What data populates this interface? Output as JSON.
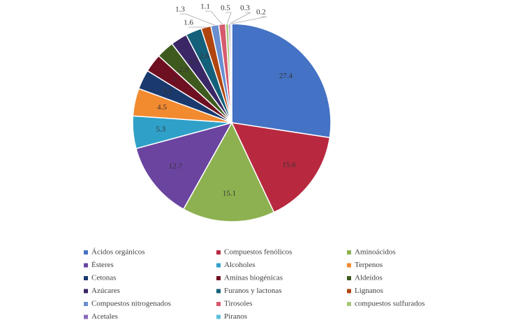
{
  "chart_data": {
    "type": "pie",
    "categories": [
      "Ácidos orgánicos",
      "Compuestos fenólicos",
      "Aminoácidos",
      "Ésteres",
      "Alcoholes",
      "Terpenos",
      "Cetonas",
      "Aminas biogénicas",
      "Aldeídos",
      "Azúcares",
      "Furanos y lactonas",
      "Lignanos",
      "Compuestos nitrogenados",
      "Tirosoles",
      "compuestos sulfurados",
      "Acetales",
      "Piranos"
    ],
    "values": [
      27.4,
      15.6,
      15.1,
      12.7,
      5.3,
      4.5,
      3.2,
      3.0,
      2.9,
      2.7,
      2.6,
      1.6,
      1.3,
      1.1,
      0.5,
      0.3,
      0.2
    ],
    "colors": [
      "#4472c4",
      "#b8293f",
      "#8db150",
      "#6b44a0",
      "#2fa0c8",
      "#f28a30",
      "#1a3a6e",
      "#6e0f22",
      "#3f5a1f",
      "#3a2766",
      "#14607a",
      "#b04510",
      "#6a8fd0",
      "#d65a6d",
      "#a9c77a",
      "#8a6ab8",
      "#5bc0dc"
    ],
    "legend": "bottom"
  }
}
